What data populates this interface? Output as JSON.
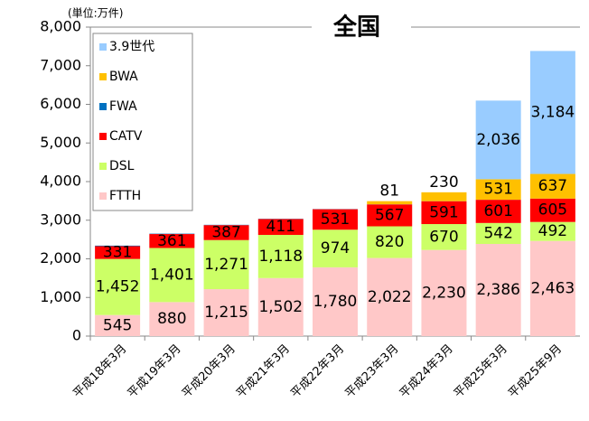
{
  "chart_data": {
    "type": "stacked_bar",
    "title": "全国",
    "subtitle": "(単位:万件)",
    "categories": [
      "平成18年3月",
      "平成19年3月",
      "平成20年3月",
      "平成21年3月",
      "平成22年3月",
      "平成23年3月",
      "平成24年3月",
      "平成25年3月",
      "平成25年9月"
    ],
    "series": [
      {
        "name": "FTTH",
        "color": "#ffc8c8",
        "values": [
          545,
          880,
          1215,
          1502,
          1780,
          2022,
          2230,
          2386,
          2463
        ]
      },
      {
        "name": "DSL",
        "color": "#ccff66",
        "values": [
          1452,
          1401,
          1271,
          1118,
          974,
          820,
          670,
          542,
          492
        ]
      },
      {
        "name": "CATV",
        "color": "#ff0000",
        "values": [
          331,
          361,
          387,
          411,
          531,
          567,
          591,
          601,
          605
        ]
      },
      {
        "name": "FWA",
        "color": "#0070c0",
        "values": [
          14,
          10,
          8,
          6,
          4,
          3,
          2,
          1,
          1
        ],
        "show_labels": false
      },
      {
        "name": "BWA",
        "color": "#ffc000",
        "values": [
          null,
          null,
          null,
          null,
          null,
          81,
          230,
          531,
          637
        ]
      },
      {
        "name": "3.9世代",
        "color": "#99ccff",
        "values": [
          null,
          null,
          null,
          null,
          null,
          null,
          null,
          2036,
          3184
        ]
      }
    ],
    "ylim": [
      0,
      8000
    ],
    "yticks": [
      0,
      {
        "value": 1000,
        "label": "1,000"
      },
      {
        "value": 2000,
        "label": "2,000"
      },
      {
        "value": 3000,
        "label": "3,000"
      },
      {
        "value": 4000,
        "label": "4,000"
      },
      {
        "value": 5000,
        "label": "5,000"
      },
      {
        "value": 6000,
        "label": "6,000"
      },
      {
        "value": 7000,
        "label": "7,000"
      },
      {
        "value": 8000,
        "label": "8,000"
      }
    ],
    "legend": "upper left",
    "grid": false
  }
}
